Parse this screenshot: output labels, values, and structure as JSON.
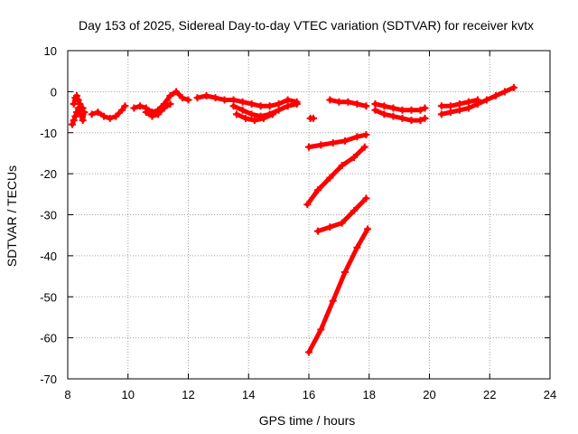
{
  "chart_data": {
    "type": "scatter",
    "title": "Day 153 of 2025, Sidereal Day-to-day VTEC variation (SDTVAR) for receiver kvtx",
    "xlabel": "GPS time / hours",
    "ylabel": "SDTVAR / TECUs",
    "xlim": [
      8,
      24
    ],
    "ylim": [
      -70,
      10
    ],
    "xticks": [
      8,
      10,
      12,
      14,
      16,
      18,
      20,
      22,
      24
    ],
    "yticks": [
      10,
      0,
      -10,
      -20,
      -30,
      -40,
      -50,
      -60,
      -70
    ],
    "grid": true,
    "marker": "+",
    "series": [
      {
        "name": "s1",
        "x": [
          8.2,
          8.25,
          8.3,
          8.35,
          8.4,
          8.45,
          8.5
        ],
        "y": [
          -3,
          -1.5,
          -1,
          -2,
          -3,
          -4,
          -4
        ]
      },
      {
        "name": "s2",
        "x": [
          8.15,
          8.2,
          8.25,
          8.3,
          8.35,
          8.4,
          8.45,
          8.5,
          8.55
        ],
        "y": [
          -8,
          -7,
          -6,
          -5,
          -4,
          -5,
          -6,
          -7,
          -5
        ]
      },
      {
        "name": "s3",
        "x": [
          8.8,
          9.0,
          9.2,
          9.4,
          9.6,
          9.8,
          9.9
        ],
        "y": [
          -5.5,
          -5,
          -6,
          -6.5,
          -6,
          -4.5,
          -3.5
        ]
      },
      {
        "name": "s4",
        "x": [
          10.2,
          10.4,
          10.6,
          10.8,
          11.0,
          11.2,
          11.4,
          11.6,
          11.8,
          12.0
        ],
        "y": [
          -4,
          -3.5,
          -4,
          -5,
          -4.5,
          -3,
          -1,
          0,
          -1.5,
          -2
        ]
      },
      {
        "name": "s5",
        "x": [
          10.6,
          10.8,
          11.0,
          11.2,
          11.4
        ],
        "y": [
          -5,
          -6,
          -5.5,
          -4,
          -3
        ]
      },
      {
        "name": "s6",
        "x": [
          12.3,
          12.6,
          12.9,
          13.2,
          13.5,
          13.8,
          14.1,
          14.4,
          14.7,
          15.0,
          15.3,
          15.6
        ],
        "y": [
          -1.5,
          -1,
          -1.5,
          -2,
          -2,
          -2.5,
          -3,
          -3.5,
          -3.5,
          -3,
          -2,
          -2.5
        ]
      },
      {
        "name": "s7",
        "x": [
          13.5,
          13.8,
          14.1,
          14.4,
          14.7,
          15.0,
          15.3,
          15.6
        ],
        "y": [
          -3.5,
          -4.5,
          -5.5,
          -6,
          -5.5,
          -4.5,
          -3.5,
          -3
        ]
      },
      {
        "name": "s8",
        "x": [
          13.6,
          13.9,
          14.2,
          14.5,
          14.8
        ],
        "y": [
          -5.5,
          -6.5,
          -7,
          -6.5,
          -5.5
        ]
      },
      {
        "name": "s9",
        "x": [
          16.05,
          16.15
        ],
        "y": [
          -6.5,
          -6.5
        ]
      },
      {
        "name": "s10",
        "x": [
          16.7,
          17.0,
          17.3,
          17.6,
          17.9
        ],
        "y": [
          -2,
          -2.5,
          -2.5,
          -3,
          -3.5
        ]
      },
      {
        "name": "s11",
        "x": [
          16.0,
          16.4,
          16.8,
          17.2,
          17.6,
          17.9
        ],
        "y": [
          -13.5,
          -13,
          -12.5,
          -12,
          -11,
          -10.5
        ]
      },
      {
        "name": "s12",
        "x": [
          15.95,
          16.3,
          16.7,
          17.1,
          17.5,
          17.85
        ],
        "y": [
          -27.5,
          -24,
          -21,
          -18,
          -16,
          -13.5
        ]
      },
      {
        "name": "s13",
        "x": [
          16.3,
          16.7,
          17.1,
          17.5,
          17.9
        ],
        "y": [
          -34,
          -33,
          -32,
          -29,
          -26
        ]
      },
      {
        "name": "s14",
        "x": [
          16.0,
          16.4,
          16.8,
          17.2,
          17.6,
          17.95
        ],
        "y": [
          -63.5,
          -58,
          -51,
          -44,
          -38,
          -33.5
        ]
      },
      {
        "name": "s15",
        "x": [
          18.2,
          18.5,
          18.8,
          19.1,
          19.4,
          19.7,
          19.85
        ],
        "y": [
          -3,
          -3.5,
          -4,
          -4.5,
          -4.5,
          -4.5,
          -4
        ]
      },
      {
        "name": "s16",
        "x": [
          18.2,
          18.5,
          18.8,
          19.1,
          19.4,
          19.7,
          19.85
        ],
        "y": [
          -4.5,
          -5.5,
          -6,
          -6.5,
          -7,
          -7,
          -6.5
        ]
      },
      {
        "name": "s17",
        "x": [
          20.4,
          20.7,
          21.0,
          21.3,
          21.6,
          21.9,
          22.2,
          22.5,
          22.8
        ],
        "y": [
          -5.5,
          -5,
          -4.5,
          -4,
          -3,
          -2,
          -1,
          0,
          1
        ]
      },
      {
        "name": "s18",
        "x": [
          20.4,
          20.7,
          21.0,
          21.3,
          21.6
        ],
        "y": [
          -3.5,
          -3.5,
          -3,
          -2.5,
          -2
        ]
      }
    ]
  }
}
